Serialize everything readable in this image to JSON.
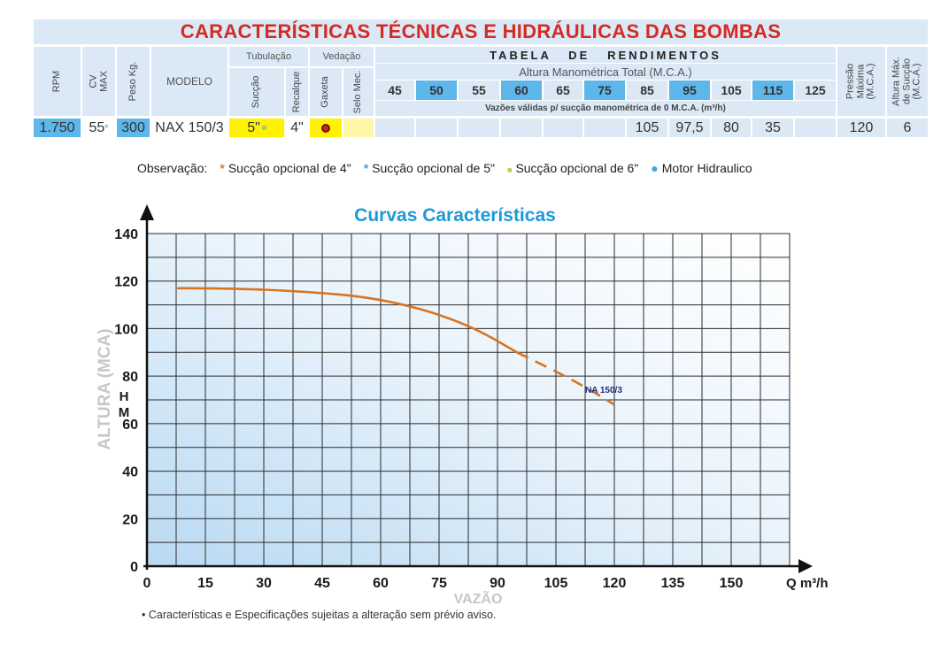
{
  "title": "CARACTERÍSTICAS TÉCNICAS E HIDRÁULICAS DAS BOMBAS",
  "table": {
    "headers": {
      "rpm": "RPM",
      "cv_max": "CV\nMAX",
      "peso": "Peso Kg.",
      "modelo": "MODELO",
      "tubulacao": "Tubulação",
      "succao": "Sucção",
      "recalque": "Recalque",
      "vedacao": "Vedação",
      "gaxeta": "Gaxeta",
      "selo_mec": "Selo Mec.",
      "tabela_rendimentos": "TABELA   DE   RENDIMENTOS",
      "altura_manometrica": "Altura Manométrica Total (M.C.A.)",
      "vazoes_validas": "Vazões válidas p/ sucção manométrica de 0 M.C.A. (m³/h)",
      "pressao_maxima": "Pressão\nMáxima\n(M.C.A.)",
      "altura_max_succao": "Altura Máx.\nde Sucção\n(M.C.A.)"
    },
    "heights": [
      "45",
      "50",
      "55",
      "60",
      "65",
      "75",
      "85",
      "95",
      "105",
      "115",
      "125"
    ],
    "highlighted_heights": [
      1,
      3,
      5,
      7,
      9
    ],
    "row": {
      "rpm": "1.750",
      "cv": "55",
      "cv_mark": "*",
      "peso": "300",
      "modelo": "NAX 150/3",
      "succao": "5\"",
      "recalque": "4\"",
      "flows": [
        "",
        "",
        "",
        "",
        "",
        "",
        "105",
        "97,5",
        "80",
        "35",
        ""
      ],
      "pressao_maxima": "120",
      "altura_max_succao": "6"
    }
  },
  "observacao": {
    "label": "Observação:",
    "items": [
      {
        "mark": "*",
        "color": "#e07a1f",
        "text": "Sucção opcional de 4\""
      },
      {
        "mark": "*",
        "color": "#3aa6e0",
        "text": "Sucção opcional de 5\""
      },
      {
        "mark": "■",
        "color": "#a6d05a",
        "text": "Sucção opcional de 6\""
      },
      {
        "mark": "●",
        "color": "#3aa6e0",
        "text": "Motor Hidraulico"
      }
    ]
  },
  "footnote": "• Características e Especificações sujeitas a alteração sem prévio aviso.",
  "chart_data": {
    "type": "line",
    "title": "Curvas Características",
    "xlabel": "VAZÃO",
    "ylabel": "ALTURA (MCA)",
    "y_unit_label": "H\nM",
    "x_unit_label": "Q m³/h",
    "xlim": [
      0,
      165
    ],
    "ylim": [
      0,
      140
    ],
    "x_ticks": [
      0,
      15,
      30,
      45,
      60,
      75,
      90,
      105,
      120,
      135,
      150
    ],
    "y_ticks": [
      0,
      20,
      40,
      60,
      80,
      100,
      120,
      140
    ],
    "grid": true,
    "series": [
      {
        "name": "NA 150/3",
        "color": "#d9731e",
        "solid": [
          [
            8,
            117
          ],
          [
            15,
            117
          ],
          [
            30,
            116.5
          ],
          [
            45,
            115
          ],
          [
            55,
            113.5
          ],
          [
            65,
            110.5
          ],
          [
            75,
            106
          ],
          [
            85,
            99.5
          ],
          [
            95,
            90
          ]
        ],
        "dashed": [
          [
            95,
            90
          ],
          [
            105,
            82
          ],
          [
            113,
            75
          ],
          [
            120,
            68
          ]
        ]
      }
    ]
  }
}
